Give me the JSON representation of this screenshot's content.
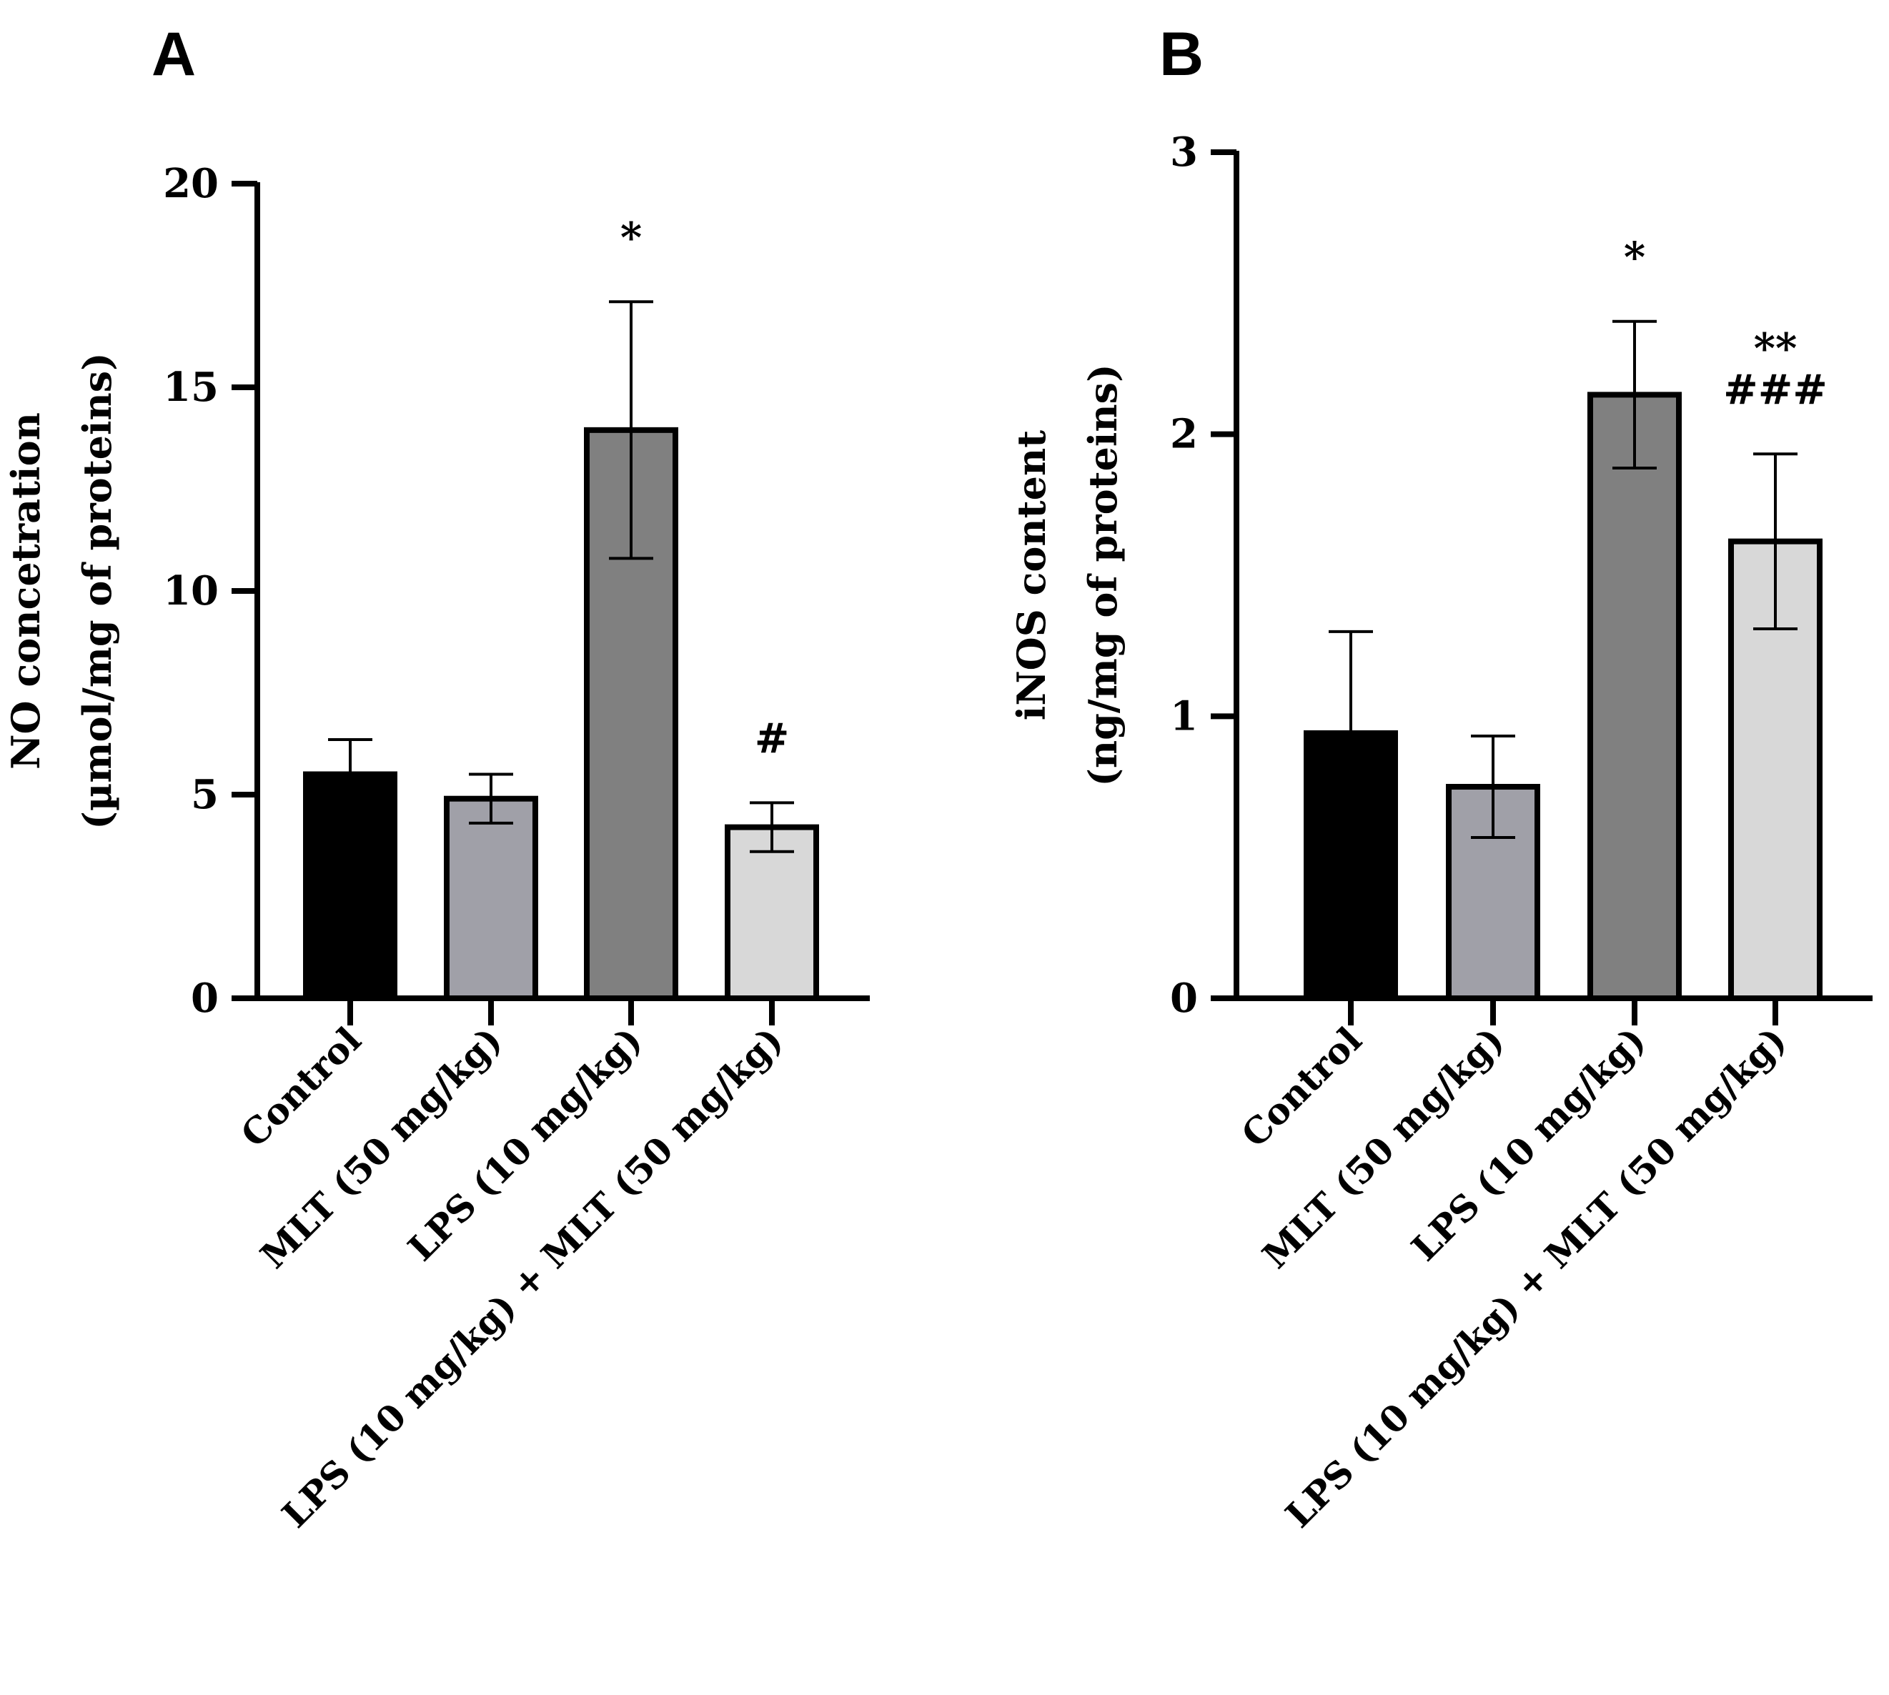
{
  "chart_data": [
    {
      "panel": "A",
      "type": "bar",
      "ylabel_line1": "NO concetration",
      "ylabel_line2": "(µmol/mg of proteins)",
      "ylim": [
        0,
        20
      ],
      "yticks": [
        0,
        5,
        10,
        15,
        20
      ],
      "categories": [
        "Control",
        "MLT (50 mg/kg)",
        "LPS (10 mg/kg)",
        "LPS (10 mg/kg) + MLT (50 mg/kg)"
      ],
      "values": [
        5.5,
        4.9,
        13.95,
        4.2
      ],
      "errors": [
        0.85,
        0.6,
        3.15,
        0.6
      ],
      "significance": [
        [],
        [],
        [
          "*"
        ],
        [
          "#"
        ]
      ],
      "colors": [
        "#000000",
        "#a0a0a8",
        "#808080",
        "#d8d8d8"
      ]
    },
    {
      "panel": "B",
      "type": "bar",
      "ylabel_line1": "iNOS  content",
      "ylabel_line2": "(ng/mg of proteins)",
      "ylim": [
        0,
        3
      ],
      "yticks": [
        0,
        1,
        2,
        3
      ],
      "categories": [
        "Control",
        "MLT (50 mg/kg)",
        "LPS (10 mg/kg)",
        "LPS (10 mg/kg) + MLT (50 mg/kg)"
      ],
      "values": [
        0.94,
        0.75,
        2.14,
        1.62
      ],
      "errors": [
        0.36,
        0.18,
        0.26,
        0.31
      ],
      "significance": [
        [],
        [],
        [
          "*"
        ],
        [
          "**",
          "###"
        ]
      ],
      "colors": [
        "#000000",
        "#a0a0a8",
        "#808080",
        "#d8d8d8"
      ]
    }
  ]
}
